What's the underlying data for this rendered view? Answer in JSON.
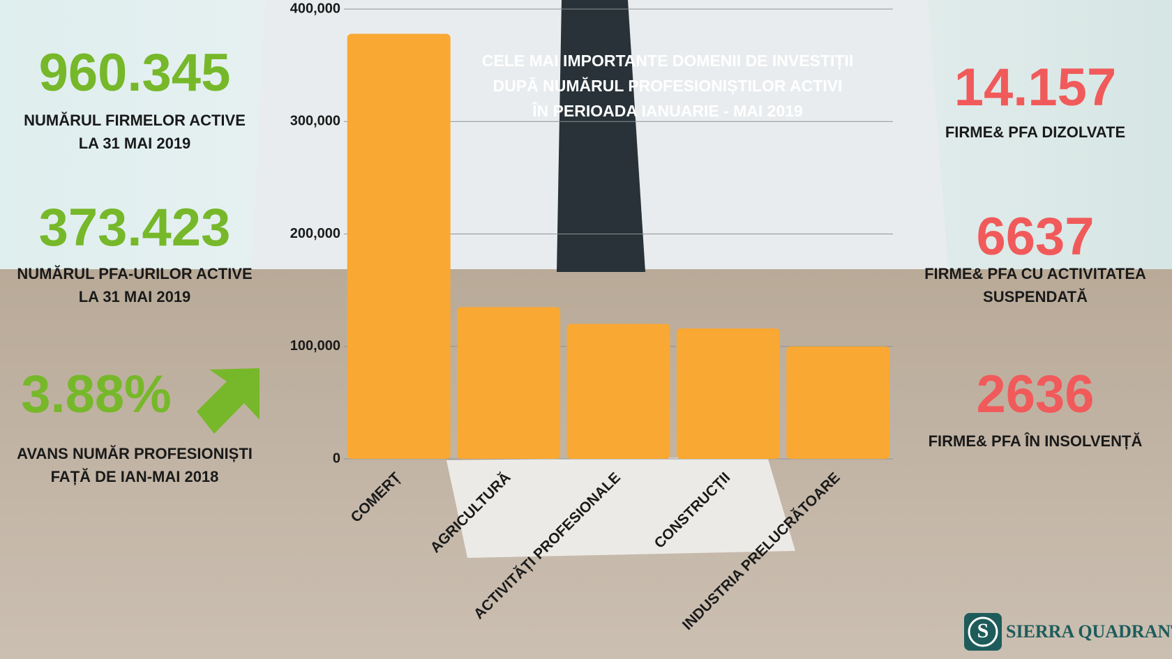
{
  "left_stats": [
    {
      "value": "960.345",
      "lines": [
        "NUMĂRUL FIRMELOR ACTIVE",
        "LA 31 MAI 2019"
      ]
    },
    {
      "value": "373.423",
      "lines": [
        "NUMĂRUL PFA-URILOR ACTIVE",
        "LA 31 MAI 2019"
      ]
    },
    {
      "value": "3.88%",
      "lines": [
        "AVANS NUMĂR PROFESIONIȘTI",
        "FAȚĂ DE IAN-MAI 2018"
      ]
    }
  ],
  "right_stats": [
    {
      "value": "14.157",
      "lines": [
        "FIRME& PFA DIZOLVATE"
      ]
    },
    {
      "value": "6637",
      "lines": [
        "FIRME& PFA CU ACTIVITATEA",
        "SUSPENDATĂ"
      ]
    },
    {
      "value": "2636",
      "lines": [
        "FIRME& PFA ÎN INSOLVENȚĂ"
      ]
    }
  ],
  "logo": {
    "initial": "S",
    "text": "SIERRA QUADRANT"
  },
  "chart_data": {
    "type": "bar",
    "title": [
      "CELE MAI IMPORTANTE DOMENII DE INVESTIȚII",
      "DUPĂ NUMĂRUL PROFESIONIȘTILOR ACTIVI",
      "ÎN PERIOADA IANUARIE - MAI 2019"
    ],
    "categories": [
      "COMERȚ",
      "AGRICULTURĂ",
      "ACTIVITĂȚI PROFESIONALE",
      "CONSTRUCȚII",
      "INDUSTRIA PRELUCRĂTOARE"
    ],
    "values": [
      378000,
      135000,
      120000,
      116000,
      100000
    ],
    "color": "#f9a833",
    "ylim": [
      0,
      400000
    ],
    "yticks": [
      0,
      {
        "value": 100000,
        "label": "100,000"
      },
      {
        "value": 200000,
        "label": "200,000"
      },
      {
        "value": 300000,
        "label": "300,000"
      },
      {
        "value": 400000,
        "label": "400,000"
      }
    ],
    "grid": true
  }
}
